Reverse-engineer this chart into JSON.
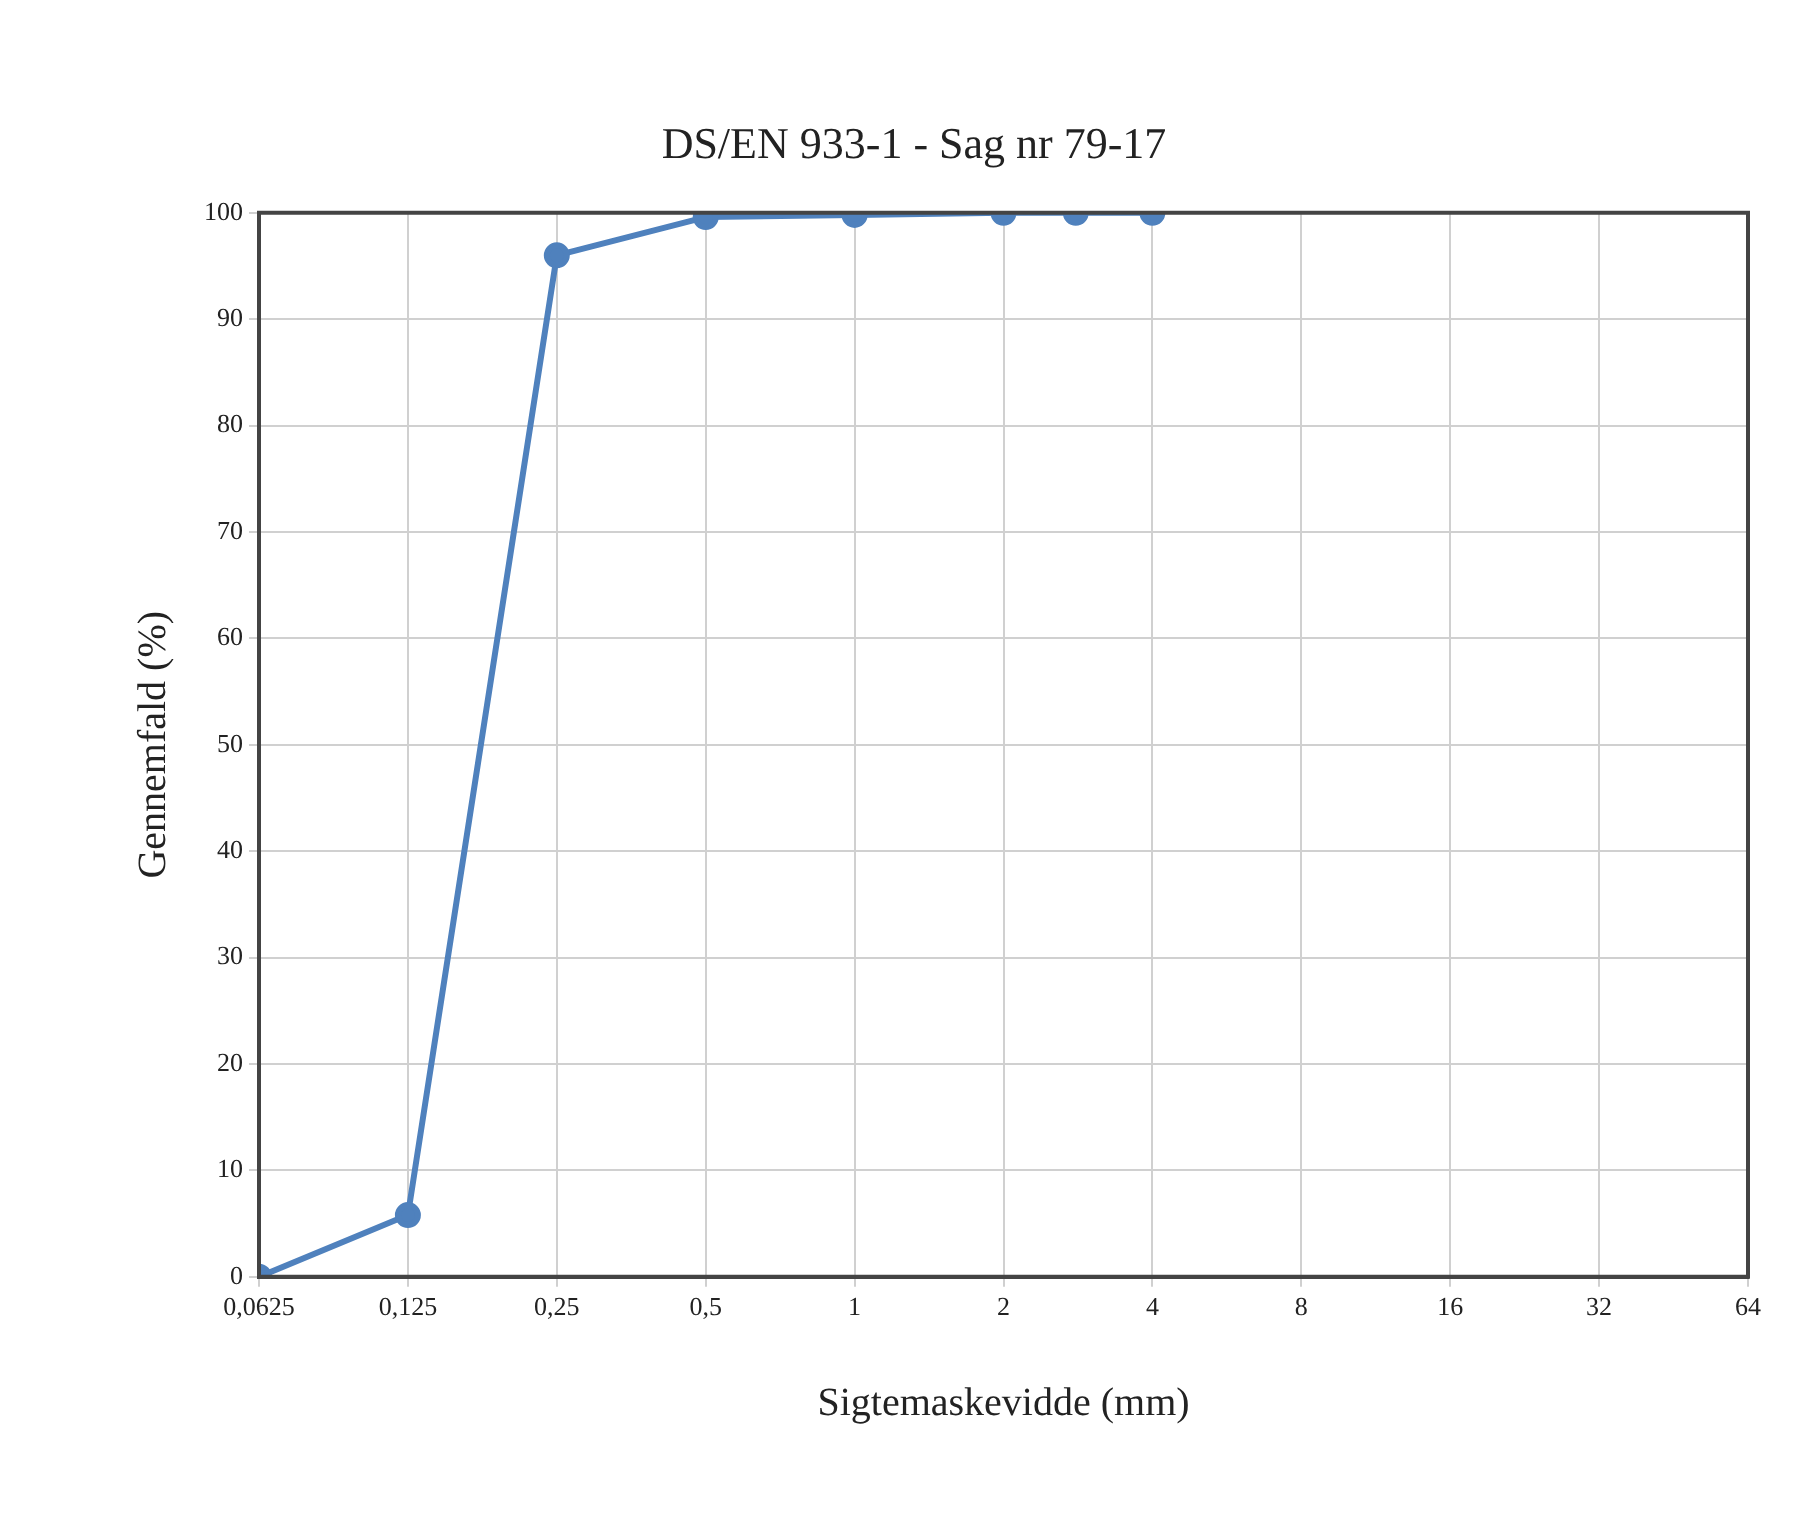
{
  "chart_data": {
    "type": "line",
    "title": "DS/EN 933-1 - Sag nr 79-17",
    "xlabel": "Sigtemaskevidde (mm)",
    "ylabel": "Gennemfald (%)",
    "x": [
      0.0625,
      0.125,
      0.25,
      0.5,
      1,
      2,
      2.8,
      4
    ],
    "series": [
      {
        "color": "#4f81bd",
        "values": [
          0,
          5.8,
          96,
          99.6,
          99.8,
          100,
          100,
          100
        ]
      }
    ],
    "log": "x",
    "xlim": [
      0.0625,
      64
    ],
    "xticks": [
      {
        "value": 0.0625,
        "label": "0,0625"
      },
      {
        "value": 0.125,
        "label": "0,125"
      },
      {
        "value": 0.25,
        "label": "0,25"
      },
      {
        "value": 0.5,
        "label": "0,5"
      },
      1,
      2,
      4,
      8,
      16,
      32,
      64
    ],
    "ylim": [
      0,
      100
    ],
    "yticks": [
      0,
      10,
      20,
      30,
      40,
      50,
      60,
      70,
      80,
      90,
      100
    ],
    "grid": true,
    "legend": false,
    "marker": "circle",
    "line_style": "solid"
  }
}
